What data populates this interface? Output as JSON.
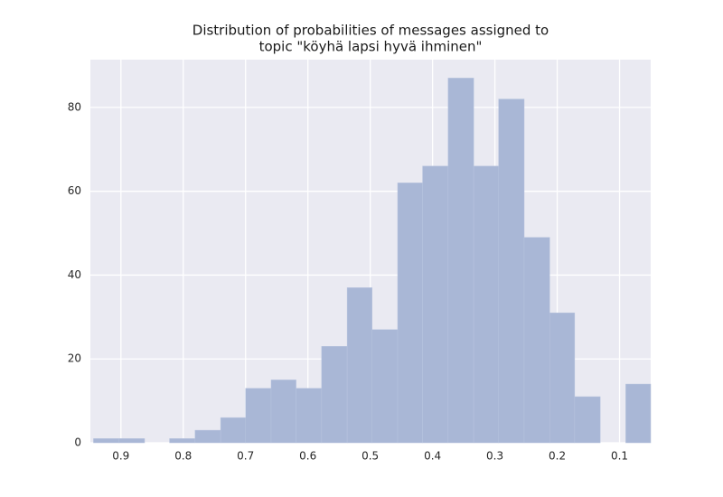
{
  "chart_data": {
    "type": "histogram",
    "title": [
      "Distribution of probabilities of messages assigned to",
      "topic \"köyhä lapsi hyvä ihminen\""
    ],
    "bins": [
      0.944,
      0.903,
      0.862,
      0.822,
      0.781,
      0.74,
      0.7,
      0.659,
      0.619,
      0.578,
      0.537,
      0.497,
      0.456,
      0.416,
      0.375,
      0.334,
      0.294,
      0.253,
      0.212,
      0.172,
      0.131,
      0.09,
      0.05
    ],
    "counts": [
      1,
      1,
      0,
      1,
      3,
      6,
      13,
      15,
      13,
      23,
      37,
      27,
      62,
      66,
      87,
      66,
      82,
      49,
      31,
      11,
      0,
      14
    ],
    "color": "#a9b7d6",
    "xlim": [
      0.949,
      0.05
    ],
    "xticks": [
      0.9,
      0.8,
      0.7,
      0.6,
      0.5,
      0.4,
      0.3,
      0.2,
      0.1
    ],
    "ylim": [
      0,
      91.4
    ],
    "yticks": [
      0,
      20,
      40,
      60,
      80
    ],
    "grid": true
  }
}
